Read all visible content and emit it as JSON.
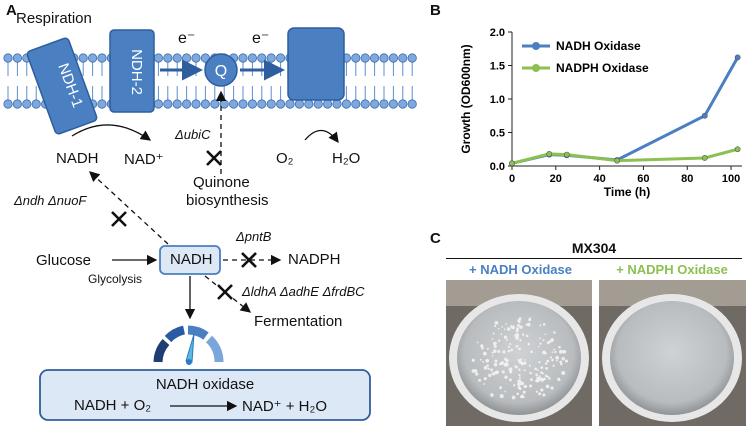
{
  "panels": {
    "a": "A",
    "b": "B",
    "c": "C"
  },
  "pathway": {
    "respiration": "Respiration",
    "ndh1": "NDH-1",
    "ndh2": "NDH-2",
    "electron1": "e⁻",
    "electron2": "e⁻",
    "quinone": "Q",
    "nadh_top": "NADH",
    "nad_top": "NAD⁺",
    "ubic": "ΔubiC",
    "quinone_bio_1": "Quinone",
    "quinone_bio_2": "biosynthesis",
    "o2": "O₂",
    "h2o": "H₂O",
    "ndh_nuof": "Δndh ΔnuoF",
    "glucose": "Glucose",
    "glycolysis": "Glycolysis",
    "nadh_center": "NADH",
    "pntb": "ΔpntB",
    "nadph": "NADPH",
    "ferm_genes": "ΔldhA ΔadhE ΔfrdBC",
    "fermentation": "Fermentation",
    "oxidase_title": "NADH oxidase",
    "reaction_left": "NADH + O₂",
    "reaction_right": "NAD⁺ + H₂O"
  },
  "colors": {
    "blue": "#4a7fc1",
    "green": "#8cc152",
    "membrane": "#5b8fd0",
    "box_fill": "#dde8f6"
  },
  "chart_data": {
    "type": "line",
    "xlabel": "Time (h)",
    "ylabel": "Growth (OD600nm)",
    "xlim": [
      0,
      105
    ],
    "ylim": [
      0,
      2.0
    ],
    "xticks": [
      0,
      20,
      40,
      60,
      80,
      100
    ],
    "yticks": [
      0.0,
      0.5,
      1.0,
      1.5,
      2.0
    ],
    "xtick_labels": [
      "0",
      "20",
      "40",
      "60",
      "80",
      "100"
    ],
    "ytick_labels": [
      "0.0",
      "0.5",
      "1.0",
      "1.5",
      "2.0"
    ],
    "legend_position": "top-left",
    "series": [
      {
        "name": "NADH Oxidase",
        "color": "#4a7fc1",
        "x": [
          0,
          17,
          25,
          48,
          88,
          103
        ],
        "y": [
          0.04,
          0.17,
          0.16,
          0.09,
          0.75,
          1.62
        ]
      },
      {
        "name": "NADPH Oxidase",
        "color": "#8cc152",
        "x": [
          0,
          17,
          25,
          48,
          88,
          103
        ],
        "y": [
          0.04,
          0.18,
          0.17,
          0.08,
          0.12,
          0.25
        ]
      }
    ]
  },
  "plates": {
    "strain": "MX304",
    "left_label": "+ NADH Oxidase",
    "right_label": "+ NADPH Oxidase"
  }
}
